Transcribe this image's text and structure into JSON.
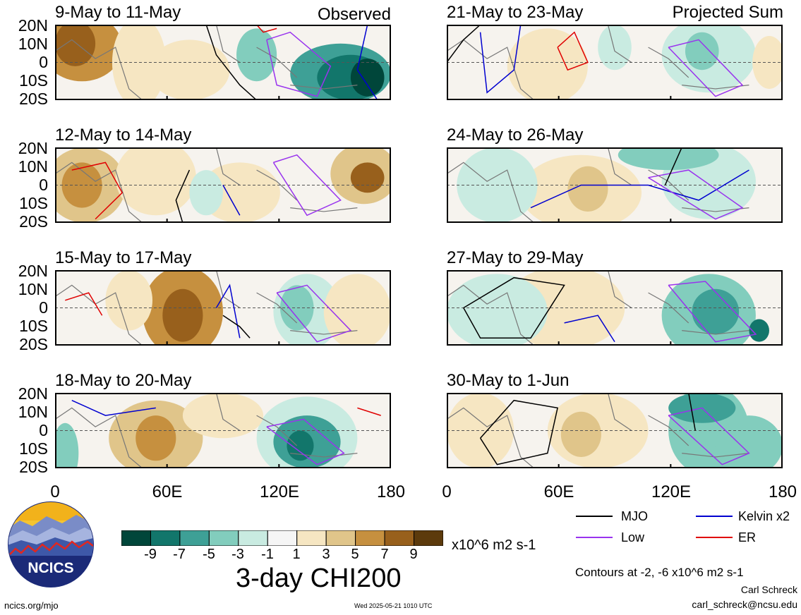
{
  "panels": [
    {
      "title": "9-May to 11-May",
      "tag": "Observed"
    },
    {
      "title": "12-May to 14-May",
      "tag": ""
    },
    {
      "title": "15-May to 17-May",
      "tag": ""
    },
    {
      "title": "18-May to 20-May",
      "tag": ""
    },
    {
      "title": "21-May to 23-May",
      "tag": "Projected Sum"
    },
    {
      "title": "24-May to 26-May",
      "tag": ""
    },
    {
      "title": "27-May to 29-May",
      "tag": ""
    },
    {
      "title": "30-May to 1-Jun",
      "tag": ""
    }
  ],
  "lat_labels": [
    "20N",
    "10N",
    "0",
    "10S",
    "20S"
  ],
  "lon_labels": [
    "0",
    "60E",
    "120E",
    "180"
  ],
  "colorbar": {
    "tick_labels": [
      "-9",
      "-7",
      "-5",
      "-3",
      "-1",
      "1",
      "3",
      "5",
      "7",
      "9"
    ],
    "units": "x10^6 m2 s-1",
    "colors": [
      "#00463a",
      "#12766b",
      "#3ea096",
      "#82cdbd",
      "#c9ebe1",
      "#f5f5f5",
      "#f6e6c2",
      "#e0c58a",
      "#c6903f",
      "#98601c",
      "#5c3a0c"
    ],
    "title": "3-day CHI200"
  },
  "legend": [
    {
      "label": "MJO",
      "color": "#000000"
    },
    {
      "label": "Kelvin x2",
      "color": "#0000d0"
    },
    {
      "label": "Low",
      "color": "#9933ee"
    },
    {
      "label": "ER",
      "color": "#e00000"
    }
  ],
  "contours_note": "Contours at -2, -6 x10^6 m2 s-1",
  "author": "Carl Schreck",
  "email": "carl_schreck@ncsu.edu",
  "website": "ncics.org/mjo",
  "timestamp": "Wed 2025-05-21 1010 UTC",
  "logo_text": "NCICS"
}
